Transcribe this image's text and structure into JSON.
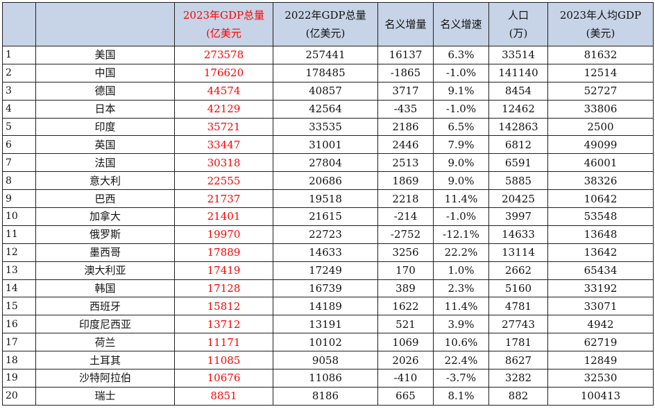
{
  "header": {
    "rank": "",
    "country": "",
    "gdp2023_line1": "2023年GDP总量",
    "gdp2023_line2": "(亿美元",
    "gdp2022_line1": "2022年GDP总量",
    "gdp2022_line2": "(亿美元)",
    "nominal_increase": "名义增量",
    "nominal_growth": "名义增速",
    "population_line1": "人口",
    "population_line2": "(万)",
    "per_capita_line1": "2023年人均GDP",
    "per_capita_line2": "(美元)"
  },
  "rows": [
    {
      "rank": "1",
      "country": "美国",
      "gdp2023": "273578",
      "gdp2022": "257441",
      "increase": "16137",
      "growth": "6.3%",
      "population": "33514",
      "per_capita": "81632"
    },
    {
      "rank": "2",
      "country": "中国",
      "gdp2023": "176620",
      "gdp2022": "178485",
      "increase": "-1865",
      "growth": "-1.0%",
      "population": "141140",
      "per_capita": "12514"
    },
    {
      "rank": "3",
      "country": "德国",
      "gdp2023": "44574",
      "gdp2022": "40857",
      "increase": "3717",
      "growth": "9.1%",
      "population": "8454",
      "per_capita": "52727"
    },
    {
      "rank": "4",
      "country": "日本",
      "gdp2023": "42129",
      "gdp2022": "42564",
      "increase": "-435",
      "growth": "-1.0%",
      "population": "12462",
      "per_capita": "33806"
    },
    {
      "rank": "5",
      "country": "印度",
      "gdp2023": "35721",
      "gdp2022": "33535",
      "increase": "2186",
      "growth": "6.5%",
      "population": "142863",
      "per_capita": "2500"
    },
    {
      "rank": "6",
      "country": "英国",
      "gdp2023": "33447",
      "gdp2022": "31001",
      "increase": "2446",
      "growth": "7.9%",
      "population": "6812",
      "per_capita": "49099"
    },
    {
      "rank": "7",
      "country": "法国",
      "gdp2023": "30318",
      "gdp2022": "27804",
      "increase": "2513",
      "growth": "9.0%",
      "population": "6591",
      "per_capita": "46001"
    },
    {
      "rank": "8",
      "country": "意大利",
      "gdp2023": "22555",
      "gdp2022": "20686",
      "increase": "1869",
      "growth": "9.0%",
      "population": "5885",
      "per_capita": "38326"
    },
    {
      "rank": "9",
      "country": "巴西",
      "gdp2023": "21737",
      "gdp2022": "19518",
      "increase": "2218",
      "growth": "11.4%",
      "population": "20425",
      "per_capita": "10642"
    },
    {
      "rank": "10",
      "country": "加拿大",
      "gdp2023": "21401",
      "gdp2022": "21615",
      "increase": "-214",
      "growth": "-1.0%",
      "population": "3997",
      "per_capita": "53548"
    },
    {
      "rank": "11",
      "country": "俄罗斯",
      "gdp2023": "19970",
      "gdp2022": "22723",
      "increase": "-2752",
      "growth": "-12.1%",
      "population": "14633",
      "per_capita": "13648"
    },
    {
      "rank": "12",
      "country": "墨西哥",
      "gdp2023": "17889",
      "gdp2022": "14633",
      "increase": "3256",
      "growth": "22.2%",
      "population": "13114",
      "per_capita": "13642"
    },
    {
      "rank": "13",
      "country": "澳大利亚",
      "gdp2023": "17419",
      "gdp2022": "17249",
      "increase": "170",
      "growth": "1.0%",
      "population": "2662",
      "per_capita": "65434"
    },
    {
      "rank": "14",
      "country": "韩国",
      "gdp2023": "17128",
      "gdp2022": "16739",
      "increase": "389",
      "growth": "2.3%",
      "population": "5160",
      "per_capita": "33192"
    },
    {
      "rank": "15",
      "country": "西班牙",
      "gdp2023": "15812",
      "gdp2022": "14189",
      "increase": "1622",
      "growth": "11.4%",
      "population": "4781",
      "per_capita": "33071"
    },
    {
      "rank": "16",
      "country": "印度尼西亚",
      "gdp2023": "13712",
      "gdp2022": "13191",
      "increase": "521",
      "growth": "3.9%",
      "population": "27743",
      "per_capita": "4942"
    },
    {
      "rank": "17",
      "country": "荷兰",
      "gdp2023": "11171",
      "gdp2022": "10102",
      "increase": "1069",
      "growth": "10.6%",
      "population": "1781",
      "per_capita": "62719"
    },
    {
      "rank": "18",
      "country": "土耳其",
      "gdp2023": "11085",
      "gdp2022": "9058",
      "increase": "2026",
      "growth": "22.4%",
      "population": "8627",
      "per_capita": "12849"
    },
    {
      "rank": "19",
      "country": "沙特阿拉伯",
      "gdp2023": "10676",
      "gdp2022": "11086",
      "increase": "-410",
      "growth": "-3.7%",
      "population": "3282",
      "per_capita": "32530"
    },
    {
      "rank": "20",
      "country": "瑞士",
      "gdp2023": "8851",
      "gdp2022": "8186",
      "increase": "665",
      "growth": "8.1%",
      "population": "882",
      "per_capita": "100413"
    }
  ],
  "colors": {
    "header_bg": "#c7d3e6",
    "highlight_text": "#ff0000",
    "border": "#1f1f1f"
  }
}
